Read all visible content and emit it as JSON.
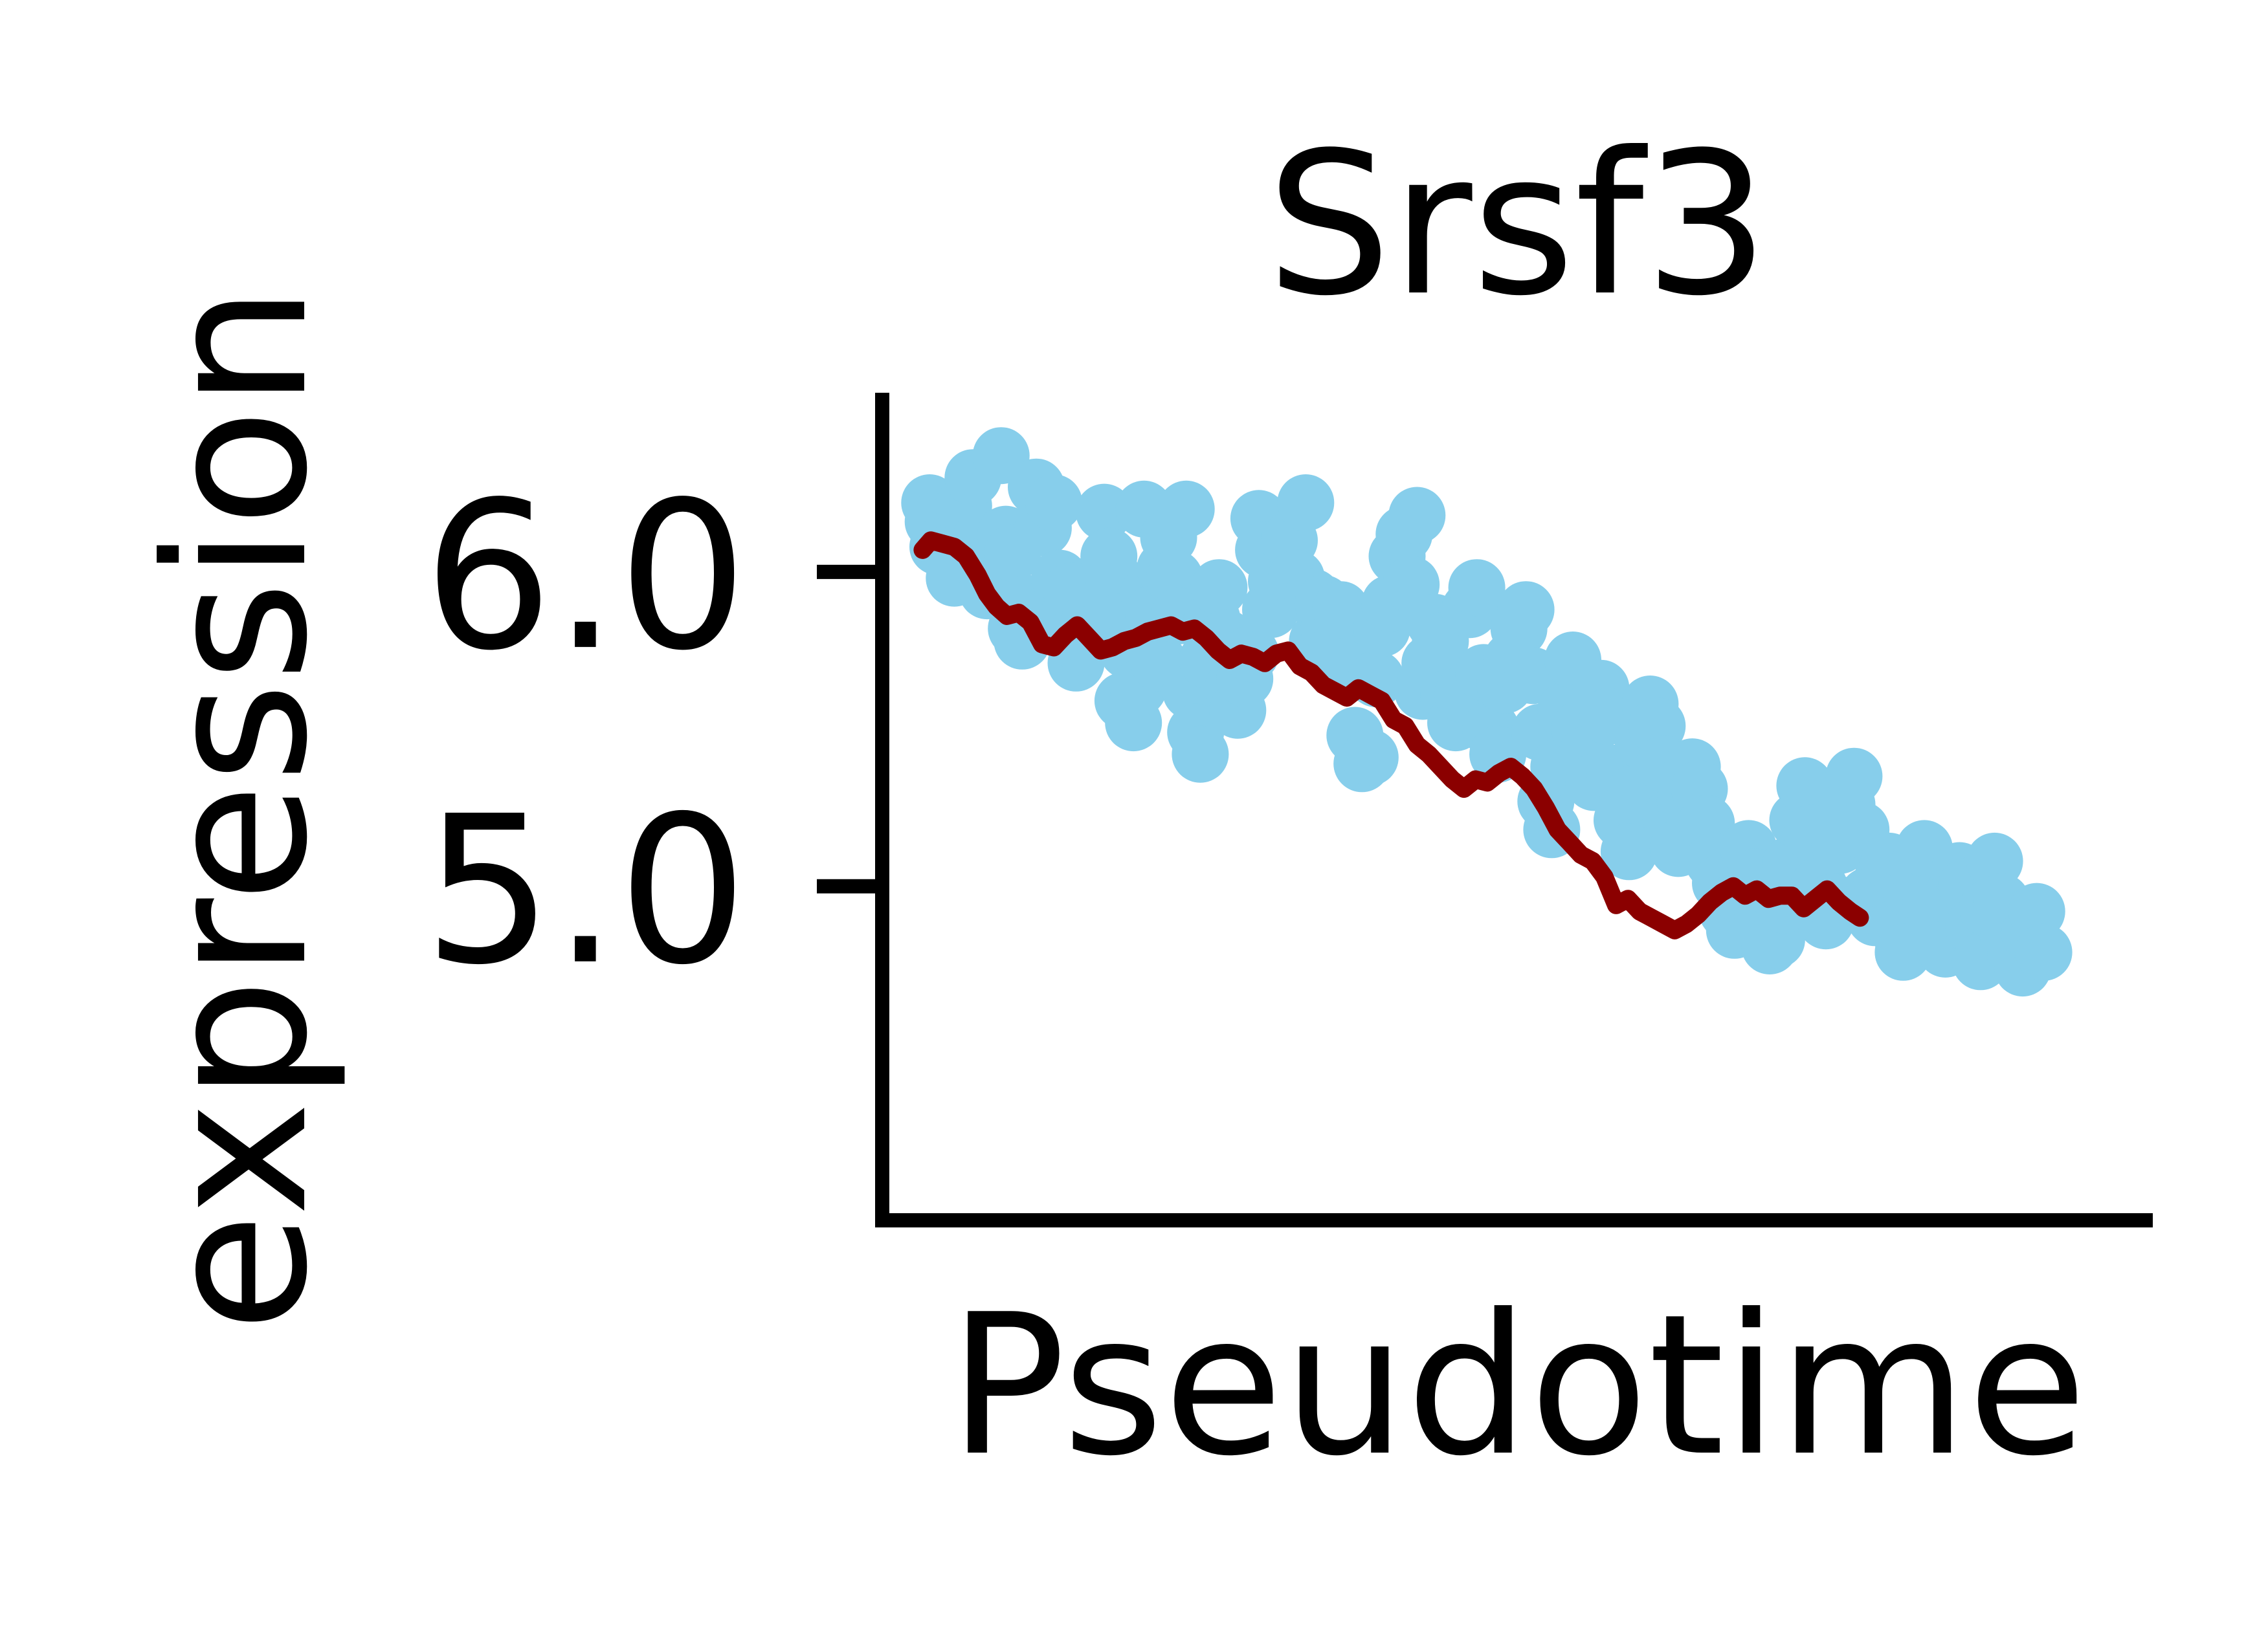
{
  "chart_data": {
    "type": "scatter",
    "title": "Srsf3",
    "xlabel": "Pseudotime",
    "ylabel": "expression",
    "ylim": [
      3.96,
      6.57
    ],
    "yticks": [
      {
        "value": 5.0,
        "label": "5.0"
      },
      {
        "value": 6.0,
        "label": "6.0"
      }
    ],
    "xticks": [],
    "grid": false,
    "legend": "none",
    "colors": {
      "points": "#87ceeb",
      "trend": "#8b0000",
      "axes": "#000000"
    },
    "series": [
      {
        "type": "scatter",
        "values": [
          [
            0.009,
            6.22
          ],
          [
            0.012,
            6.16
          ],
          [
            0.016,
            6.08
          ],
          [
            0.025,
            6.06
          ],
          [
            0.03,
            5.98
          ],
          [
            0.038,
            6.21
          ],
          [
            0.046,
            6.3
          ],
          [
            0.052,
            6.1
          ],
          [
            0.058,
            5.94
          ],
          [
            0.064,
            6.04
          ],
          [
            0.07,
            6.37
          ],
          [
            0.074,
            6.12
          ],
          [
            0.08,
            6.06
          ],
          [
            0.083,
            5.82
          ],
          [
            0.088,
            5.78
          ],
          [
            0.092,
            5.9
          ],
          [
            0.1,
            6.27
          ],
          [
            0.106,
            6.14
          ],
          [
            0.11,
            5.87
          ],
          [
            0.115,
            6.22
          ],
          [
            0.12,
            5.98
          ],
          [
            0.126,
            5.85
          ],
          [
            0.13,
            5.94
          ],
          [
            0.134,
            5.71
          ],
          [
            0.14,
            5.76
          ],
          [
            0.146,
            5.85
          ],
          [
            0.152,
            5.97
          ],
          [
            0.158,
            6.19
          ],
          [
            0.162,
            6.05
          ],
          [
            0.166,
            5.98
          ],
          [
            0.17,
            5.84
          ],
          [
            0.174,
            5.59
          ],
          [
            0.178,
            5.75
          ],
          [
            0.183,
            5.52
          ],
          [
            0.187,
            5.63
          ],
          [
            0.192,
            6.2
          ],
          [
            0.196,
            5.93
          ],
          [
            0.2,
            5.87
          ],
          [
            0.205,
            5.71
          ],
          [
            0.21,
            6.01
          ],
          [
            0.213,
            6.11
          ],
          [
            0.218,
            5.98
          ],
          [
            0.222,
            5.86
          ],
          [
            0.228,
            6.2
          ],
          [
            0.232,
            5.62
          ],
          [
            0.236,
            5.49
          ],
          [
            0.24,
            5.42
          ],
          [
            0.246,
            5.72
          ],
          [
            0.25,
            5.85
          ],
          [
            0.256,
            5.95
          ],
          [
            0.262,
            5.79
          ],
          [
            0.268,
            5.63
          ],
          [
            0.272,
            5.56
          ],
          [
            0.278,
            5.66
          ],
          [
            0.283,
            5.74
          ],
          [
            0.29,
            6.17
          ],
          [
            0.294,
            6.07
          ],
          [
            0.3,
            5.88
          ],
          [
            0.305,
            5.97
          ],
          [
            0.31,
            5.92
          ],
          [
            0.316,
            6.1
          ],
          [
            0.322,
            5.98
          ],
          [
            0.33,
            6.22
          ],
          [
            0.336,
            5.92
          ],
          [
            0.34,
            5.78
          ],
          [
            0.345,
            5.9
          ],
          [
            0.35,
            5.82
          ],
          [
            0.356,
            5.75
          ],
          [
            0.36,
            5.88
          ],
          [
            0.366,
            5.69
          ],
          [
            0.372,
            5.48
          ],
          [
            0.378,
            5.39
          ],
          [
            0.385,
            5.41
          ],
          [
            0.39,
            5.66
          ],
          [
            0.395,
            5.82
          ],
          [
            0.402,
            5.9
          ],
          [
            0.408,
            6.05
          ],
          [
            0.414,
            6.12
          ],
          [
            0.42,
            5.96
          ],
          [
            0.425,
            6.18
          ],
          [
            0.43,
            5.62
          ],
          [
            0.436,
            5.71
          ],
          [
            0.44,
            5.84
          ],
          [
            0.445,
            5.78
          ],
          [
            0.452,
            5.6
          ],
          [
            0.458,
            5.52
          ],
          [
            0.464,
            5.61
          ],
          [
            0.47,
            5.88
          ],
          [
            0.476,
            5.95
          ],
          [
            0.482,
            5.68
          ],
          [
            0.488,
            5.5
          ],
          [
            0.494,
            5.42
          ],
          [
            0.5,
            5.64
          ],
          [
            0.506,
            5.72
          ],
          [
            0.512,
            5.82
          ],
          [
            0.518,
            5.88
          ],
          [
            0.524,
            5.67
          ],
          [
            0.53,
            5.49
          ],
          [
            0.535,
            5.27
          ],
          [
            0.54,
            5.18
          ],
          [
            0.546,
            5.38
          ],
          [
            0.552,
            5.56
          ],
          [
            0.558,
            5.72
          ],
          [
            0.564,
            5.5
          ],
          [
            0.57,
            5.42
          ],
          [
            0.576,
            5.33
          ],
          [
            0.582,
            5.63
          ],
          [
            0.588,
            5.54
          ],
          [
            0.594,
            5.36
          ],
          [
            0.6,
            5.21
          ],
          [
            0.606,
            5.11
          ],
          [
            0.612,
            5.3
          ],
          [
            0.618,
            5.46
          ],
          [
            0.624,
            5.58
          ],
          [
            0.63,
            5.51
          ],
          [
            0.636,
            5.39
          ],
          [
            0.642,
            5.22
          ],
          [
            0.648,
            5.12
          ],
          [
            0.654,
            5.27
          ],
          [
            0.66,
            5.38
          ],
          [
            0.666,
            5.31
          ],
          [
            0.672,
            5.2
          ],
          [
            0.678,
            5.08
          ],
          [
            0.684,
            5.01
          ],
          [
            0.69,
            4.92
          ],
          [
            0.696,
            4.86
          ],
          [
            0.702,
            4.97
          ],
          [
            0.708,
            5.12
          ],
          [
            0.714,
            5.03
          ],
          [
            0.72,
            4.91
          ],
          [
            0.726,
            4.81
          ],
          [
            0.732,
            4.83
          ],
          [
            0.738,
            4.94
          ],
          [
            0.744,
            5.07
          ],
          [
            0.75,
            5.21
          ],
          [
            0.756,
            5.32
          ],
          [
            0.762,
            5.17
          ],
          [
            0.768,
            5.0
          ],
          [
            0.774,
            4.89
          ],
          [
            0.78,
            4.95
          ],
          [
            0.786,
            5.13
          ],
          [
            0.792,
            5.26
          ],
          [
            0.798,
            5.35
          ],
          [
            0.804,
            5.18
          ],
          [
            0.81,
            4.97
          ],
          [
            0.816,
            4.9
          ],
          [
            0.822,
            5.02
          ],
          [
            0.828,
            5.08
          ],
          [
            0.834,
            4.87
          ],
          [
            0.84,
            4.79
          ],
          [
            0.846,
            4.99
          ],
          [
            0.852,
            5.06
          ],
          [
            0.858,
            5.12
          ],
          [
            0.864,
            4.95
          ],
          [
            0.87,
            4.86
          ],
          [
            0.876,
            4.8
          ],
          [
            0.882,
            4.97
          ],
          [
            0.888,
            5.05
          ],
          [
            0.894,
            5.0
          ],
          [
            0.9,
            4.87
          ],
          [
            0.906,
            4.76
          ],
          [
            0.912,
            4.93
          ],
          [
            0.918,
            5.08
          ],
          [
            0.924,
            4.95
          ],
          [
            0.93,
            4.84
          ],
          [
            0.936,
            4.78
          ],
          [
            0.942,
            4.74
          ],
          [
            0.948,
            4.85
          ],
          [
            0.954,
            4.92
          ],
          [
            0.96,
            4.79
          ]
        ]
      },
      {
        "type": "line",
        "values": [
          [
            0.003,
            6.07
          ],
          [
            0.01,
            6.1
          ],
          [
            0.02,
            6.09
          ],
          [
            0.03,
            6.08
          ],
          [
            0.04,
            6.05
          ],
          [
            0.05,
            5.99
          ],
          [
            0.058,
            5.93
          ],
          [
            0.066,
            5.89
          ],
          [
            0.075,
            5.86
          ],
          [
            0.085,
            5.87
          ],
          [
            0.095,
            5.84
          ],
          [
            0.105,
            5.77
          ],
          [
            0.115,
            5.76
          ],
          [
            0.125,
            5.8
          ],
          [
            0.135,
            5.83
          ],
          [
            0.145,
            5.79
          ],
          [
            0.155,
            5.75
          ],
          [
            0.165,
            5.76
          ],
          [
            0.175,
            5.78
          ],
          [
            0.185,
            5.79
          ],
          [
            0.195,
            5.81
          ],
          [
            0.205,
            5.82
          ],
          [
            0.215,
            5.83
          ],
          [
            0.225,
            5.81
          ],
          [
            0.235,
            5.82
          ],
          [
            0.245,
            5.79
          ],
          [
            0.255,
            5.75
          ],
          [
            0.265,
            5.72
          ],
          [
            0.275,
            5.74
          ],
          [
            0.285,
            5.73
          ],
          [
            0.295,
            5.71
          ],
          [
            0.305,
            5.74
          ],
          [
            0.315,
            5.75
          ],
          [
            0.325,
            5.7
          ],
          [
            0.335,
            5.68
          ],
          [
            0.345,
            5.64
          ],
          [
            0.355,
            5.62
          ],
          [
            0.365,
            5.6
          ],
          [
            0.375,
            5.63
          ],
          [
            0.385,
            5.61
          ],
          [
            0.395,
            5.59
          ],
          [
            0.405,
            5.53
          ],
          [
            0.415,
            5.51
          ],
          [
            0.425,
            5.45
          ],
          [
            0.435,
            5.42
          ],
          [
            0.445,
            5.38
          ],
          [
            0.455,
            5.34
          ],
          [
            0.465,
            5.31
          ],
          [
            0.475,
            5.34
          ],
          [
            0.485,
            5.33
          ],
          [
            0.495,
            5.36
          ],
          [
            0.505,
            5.38
          ],
          [
            0.515,
            5.35
          ],
          [
            0.525,
            5.31
          ],
          [
            0.535,
            5.25
          ],
          [
            0.545,
            5.18
          ],
          [
            0.555,
            5.14
          ],
          [
            0.565,
            5.1
          ],
          [
            0.575,
            5.08
          ],
          [
            0.585,
            5.03
          ],
          [
            0.595,
            4.94
          ],
          [
            0.605,
            4.96
          ],
          [
            0.615,
            4.92
          ],
          [
            0.625,
            4.9
          ],
          [
            0.635,
            4.88
          ],
          [
            0.645,
            4.86
          ],
          [
            0.655,
            4.88
          ],
          [
            0.665,
            4.91
          ],
          [
            0.675,
            4.95
          ],
          [
            0.685,
            4.98
          ],
          [
            0.695,
            5.0
          ],
          [
            0.705,
            4.97
          ],
          [
            0.715,
            4.99
          ],
          [
            0.725,
            4.96
          ],
          [
            0.735,
            4.97
          ],
          [
            0.745,
            4.97
          ],
          [
            0.755,
            4.93
          ],
          [
            0.765,
            4.96
          ],
          [
            0.775,
            4.99
          ],
          [
            0.785,
            4.95
          ],
          [
            0.795,
            4.92
          ],
          [
            0.803,
            4.9
          ]
        ]
      }
    ]
  }
}
